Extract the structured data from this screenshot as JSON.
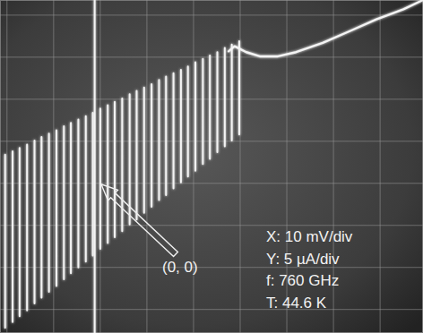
{
  "chart_data": {
    "type": "line",
    "xlim": [
      -21.5,
      69.2
    ],
    "ylim": [
      -17.8,
      21.8
    ],
    "xticks": [
      -20,
      -10,
      0,
      10,
      20,
      30,
      40,
      50,
      60
    ],
    "yticks": [
      -15,
      -10,
      -5,
      0,
      5,
      10,
      15,
      20
    ],
    "grid": true,
    "tick_labels": false,
    "annotations": [
      {
        "text": "(0, 0)",
        "x": 0,
        "y": 0
      },
      {
        "text": "X: 10 mV/div"
      },
      {
        "text": "Y: 5 µA/div"
      },
      {
        "text": "f: 760 GHz"
      },
      {
        "text": "T: 44.6 K"
      }
    ],
    "series": [
      {
        "color": "#f4f4f4",
        "x": [
          -20.4,
          -20.4,
          null,
          -18.8,
          -18.8,
          null,
          -17.3,
          -17.3,
          null,
          -15.7,
          -15.7,
          null,
          -14.1,
          -14.1,
          null,
          -12.6,
          -12.6,
          null,
          -11.0,
          -11.0,
          null,
          -9.4,
          -9.4,
          null,
          -7.8,
          -7.8,
          null,
          -6.3,
          -6.3,
          null,
          -4.7,
          -4.7,
          null,
          -3.1,
          -3.1,
          null,
          -1.6,
          -1.6,
          null,
          0,
          0,
          null,
          1.6,
          1.6,
          null,
          3.1,
          3.1,
          null,
          4.7,
          4.7,
          null,
          6.3,
          6.3,
          null,
          7.8,
          7.8,
          null,
          9.4,
          9.4,
          null,
          11.0,
          11.0,
          null,
          12.6,
          12.6,
          null,
          14.1,
          14.1,
          null,
          15.7,
          15.7,
          null,
          17.3,
          17.3,
          null,
          18.8,
          18.8,
          null,
          20.4,
          20.4,
          null,
          22.0,
          22.0,
          null,
          23.5,
          23.5,
          null,
          25.1,
          25.1,
          null,
          26.7,
          26.7,
          null,
          28.2,
          28.2,
          null,
          29.8,
          29.8
        ],
        "values": [
          -17.2,
          3.4,
          null,
          -16.5,
          3.8,
          null,
          -15.8,
          4.2,
          null,
          -15.1,
          4.6,
          null,
          -14.3,
          5.1,
          null,
          -13.6,
          5.5,
          null,
          -12.9,
          5.9,
          null,
          -12.2,
          6.3,
          null,
          -11.4,
          6.8,
          null,
          -10.7,
          7.2,
          null,
          -10.0,
          7.6,
          null,
          -9.3,
          8.0,
          null,
          -8.6,
          8.4,
          null,
          -7.8,
          8.9,
          null,
          -7.1,
          9.3,
          null,
          -6.4,
          9.7,
          null,
          -5.7,
          10.1,
          null,
          -4.9,
          10.6,
          null,
          -4.3,
          11.0,
          null,
          -3.5,
          11.4,
          null,
          -2.8,
          11.8,
          null,
          -2.0,
          12.3,
          null,
          -1.4,
          12.7,
          null,
          -0.6,
          13.1,
          null,
          0.1,
          13.5,
          null,
          0.8,
          13.9,
          null,
          1.5,
          14.4,
          null,
          2.3,
          14.8,
          null,
          2.9,
          15.2,
          null,
          3.7,
          15.6,
          null,
          4.4,
          16.1,
          null,
          5.1,
          16.5,
          null,
          5.8,
          16.9
        ]
      },
      {
        "color": "#f4f4f4",
        "x": [
          -1.2,
          -1.2
        ],
        "values": [
          -17.8,
          21.8
        ]
      },
      {
        "color": "#f4f4f4",
        "x": [
          27.5,
          28.8,
          31.3,
          34.2,
          38.1,
          42.0,
          47.7,
          53.5,
          59.2,
          65.0,
          69.2
        ],
        "values": [
          15.7,
          16.3,
          15.6,
          15.1,
          15.1,
          15.6,
          16.7,
          18.1,
          19.5,
          20.7,
          21.8
        ]
      }
    ]
  }
}
